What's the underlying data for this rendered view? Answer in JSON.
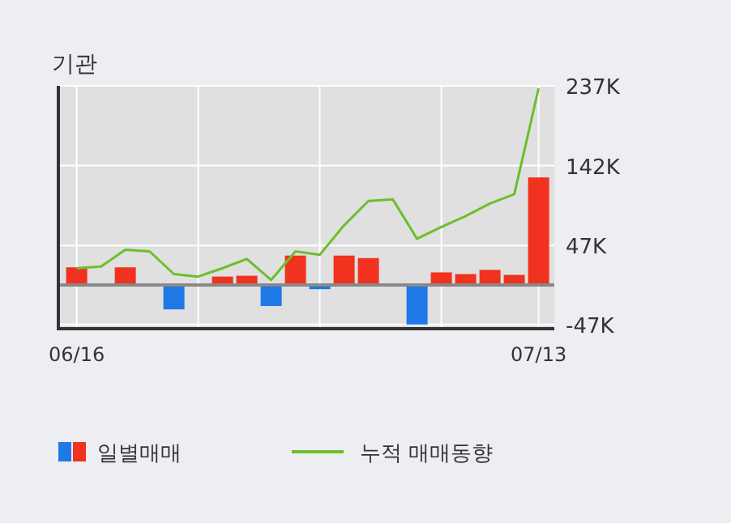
{
  "chart_data": {
    "type": "bar",
    "title": "기관",
    "categories": [
      "06/16",
      null,
      null,
      null,
      null,
      null,
      null,
      null,
      null,
      null,
      null,
      null,
      null,
      null,
      null,
      null,
      null,
      null,
      null,
      "07/13"
    ],
    "series": [
      {
        "name": "일별매매",
        "colors": [
          "#f0321e",
          "#f0321e",
          "#f0321e",
          "#f0321e",
          "#1e78e6",
          "#f0321e",
          "#f0321e",
          "#f0321e",
          "#1e78e6",
          "#f0321e",
          "#1e78e6",
          "#f0321e",
          "#f0321e",
          "#f0321e",
          "#1e78e6",
          "#f0321e",
          "#f0321e",
          "#f0321e",
          "#f0321e",
          "#f0321e"
        ],
        "values": [
          21000,
          0,
          21000,
          0,
          -29000,
          0,
          10000,
          11000,
          -25000,
          35000,
          -5000,
          35000,
          32000,
          0,
          -47000,
          15000,
          13000,
          18000,
          12000,
          128000
        ]
      },
      {
        "name": "누적 매매동향",
        "type": "line",
        "color": "#6cbf2a",
        "values": [
          20000,
          22000,
          42000,
          40000,
          13000,
          10000,
          20000,
          31000,
          6000,
          40000,
          36000,
          71000,
          100000,
          102000,
          55000,
          69000,
          82000,
          97000,
          108000,
          234000
        ]
      }
    ],
    "ylim": [
      -52000,
      237000
    ],
    "yticks": [
      {
        "value": 237000,
        "label": "237K"
      },
      {
        "value": 142000,
        "label": "142K"
      },
      {
        "value": 47000,
        "label": "47K"
      },
      {
        "value": -47000,
        "label": "-47K"
      }
    ],
    "grid": true,
    "legend": "bottom"
  }
}
